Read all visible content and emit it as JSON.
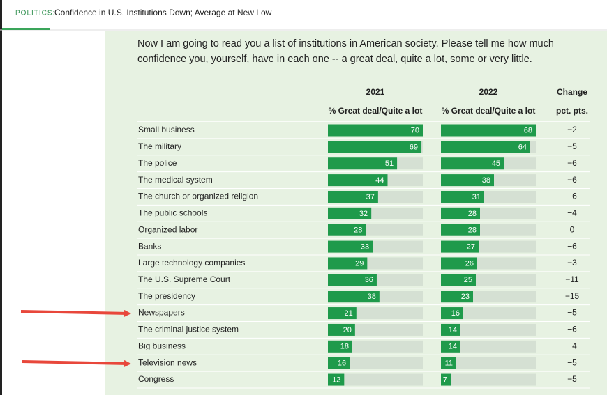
{
  "header": {
    "section": "POLITICS:",
    "title": "Confidence in U.S. Institutions Down; Average at New Low"
  },
  "question": "Now I am going to read you a list of institutions in American society. Please tell me how much confidence you, yourself, have in each one -- a great deal, quite a lot, some or very little.",
  "table": {
    "columns": [
      {
        "top": "2021",
        "bottom": "% Great deal/Quite a lot"
      },
      {
        "top": "2022",
        "bottom": "% Great deal/Quite a lot"
      },
      {
        "top": "Change",
        "bottom": "pct. pts."
      }
    ],
    "rows": [
      {
        "name": "Small business",
        "y2021": 70,
        "y2022": 68,
        "change": "−2"
      },
      {
        "name": "The military",
        "y2021": 69,
        "y2022": 64,
        "change": "−5"
      },
      {
        "name": "The police",
        "y2021": 51,
        "y2022": 45,
        "change": "−6"
      },
      {
        "name": "The medical system",
        "y2021": 44,
        "y2022": 38,
        "change": "−6"
      },
      {
        "name": "The church or organized religion",
        "y2021": 37,
        "y2022": 31,
        "change": "−6"
      },
      {
        "name": "The public schools",
        "y2021": 32,
        "y2022": 28,
        "change": "−4"
      },
      {
        "name": "Organized labor",
        "y2021": 28,
        "y2022": 28,
        "change": "0"
      },
      {
        "name": "Banks",
        "y2021": 33,
        "y2022": 27,
        "change": "−6"
      },
      {
        "name": "Large technology companies",
        "y2021": 29,
        "y2022": 26,
        "change": "−3"
      },
      {
        "name": "The U.S. Supreme Court",
        "y2021": 36,
        "y2022": 25,
        "change": "−11"
      },
      {
        "name": "The presidency",
        "y2021": 38,
        "y2022": 23,
        "change": "−15"
      },
      {
        "name": "Newspapers",
        "y2021": 21,
        "y2022": 16,
        "change": "−5"
      },
      {
        "name": "The criminal justice system",
        "y2021": 20,
        "y2022": 14,
        "change": "−6"
      },
      {
        "name": "Big business",
        "y2021": 18,
        "y2022": 14,
        "change": "−4"
      },
      {
        "name": "Television news",
        "y2021": 16,
        "y2022": 11,
        "change": "−5"
      },
      {
        "name": "Congress",
        "y2021": 12,
        "y2022": 7,
        "change": "−5"
      }
    ]
  }
}
